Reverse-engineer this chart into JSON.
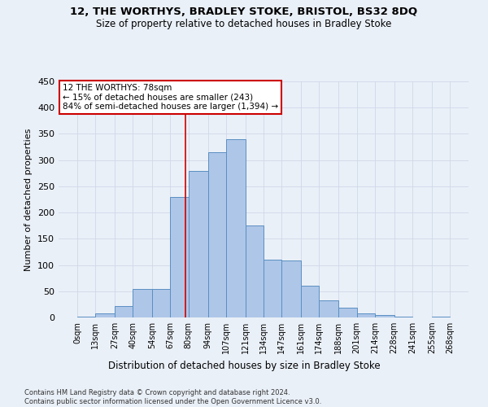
{
  "title": "12, THE WORTHYS, BRADLEY STOKE, BRISTOL, BS32 8DQ",
  "subtitle": "Size of property relative to detached houses in Bradley Stoke",
  "xlabel": "Distribution of detached houses by size in Bradley Stoke",
  "ylabel": "Number of detached properties",
  "footer_line1": "Contains HM Land Registry data © Crown copyright and database right 2024.",
  "footer_line2": "Contains public sector information licensed under the Open Government Licence v3.0.",
  "bin_labels": [
    "0sqm",
    "13sqm",
    "27sqm",
    "40sqm",
    "54sqm",
    "67sqm",
    "80sqm",
    "94sqm",
    "107sqm",
    "121sqm",
    "134sqm",
    "147sqm",
    "161sqm",
    "174sqm",
    "188sqm",
    "201sqm",
    "214sqm",
    "228sqm",
    "241sqm",
    "255sqm",
    "268sqm"
  ],
  "bin_edges": [
    0,
    13,
    27,
    40,
    54,
    67,
    80,
    94,
    107,
    121,
    134,
    147,
    161,
    174,
    188,
    201,
    214,
    228,
    241,
    255,
    268
  ],
  "bar_heights": [
    2,
    7,
    22,
    54,
    54,
    230,
    280,
    315,
    340,
    175,
    110,
    109,
    60,
    32,
    18,
    7,
    4,
    2,
    0,
    2
  ],
  "bar_color": "#aec6e8",
  "bar_edge_color": "#5a8fc2",
  "property_value": 78,
  "annotation_text": "12 THE WORTHYS: 78sqm\n← 15% of detached houses are smaller (243)\n84% of semi-detached houses are larger (1,394) →",
  "annotation_box_color": "#ffffff",
  "annotation_box_edge_color": "#cc0000",
  "vline_color": "#cc0000",
  "grid_color": "#d0d8e8",
  "background_color": "#eaf0f8",
  "ylim": [
    0,
    450
  ],
  "yticks": [
    0,
    50,
    100,
    150,
    200,
    250,
    300,
    350,
    400,
    450
  ]
}
